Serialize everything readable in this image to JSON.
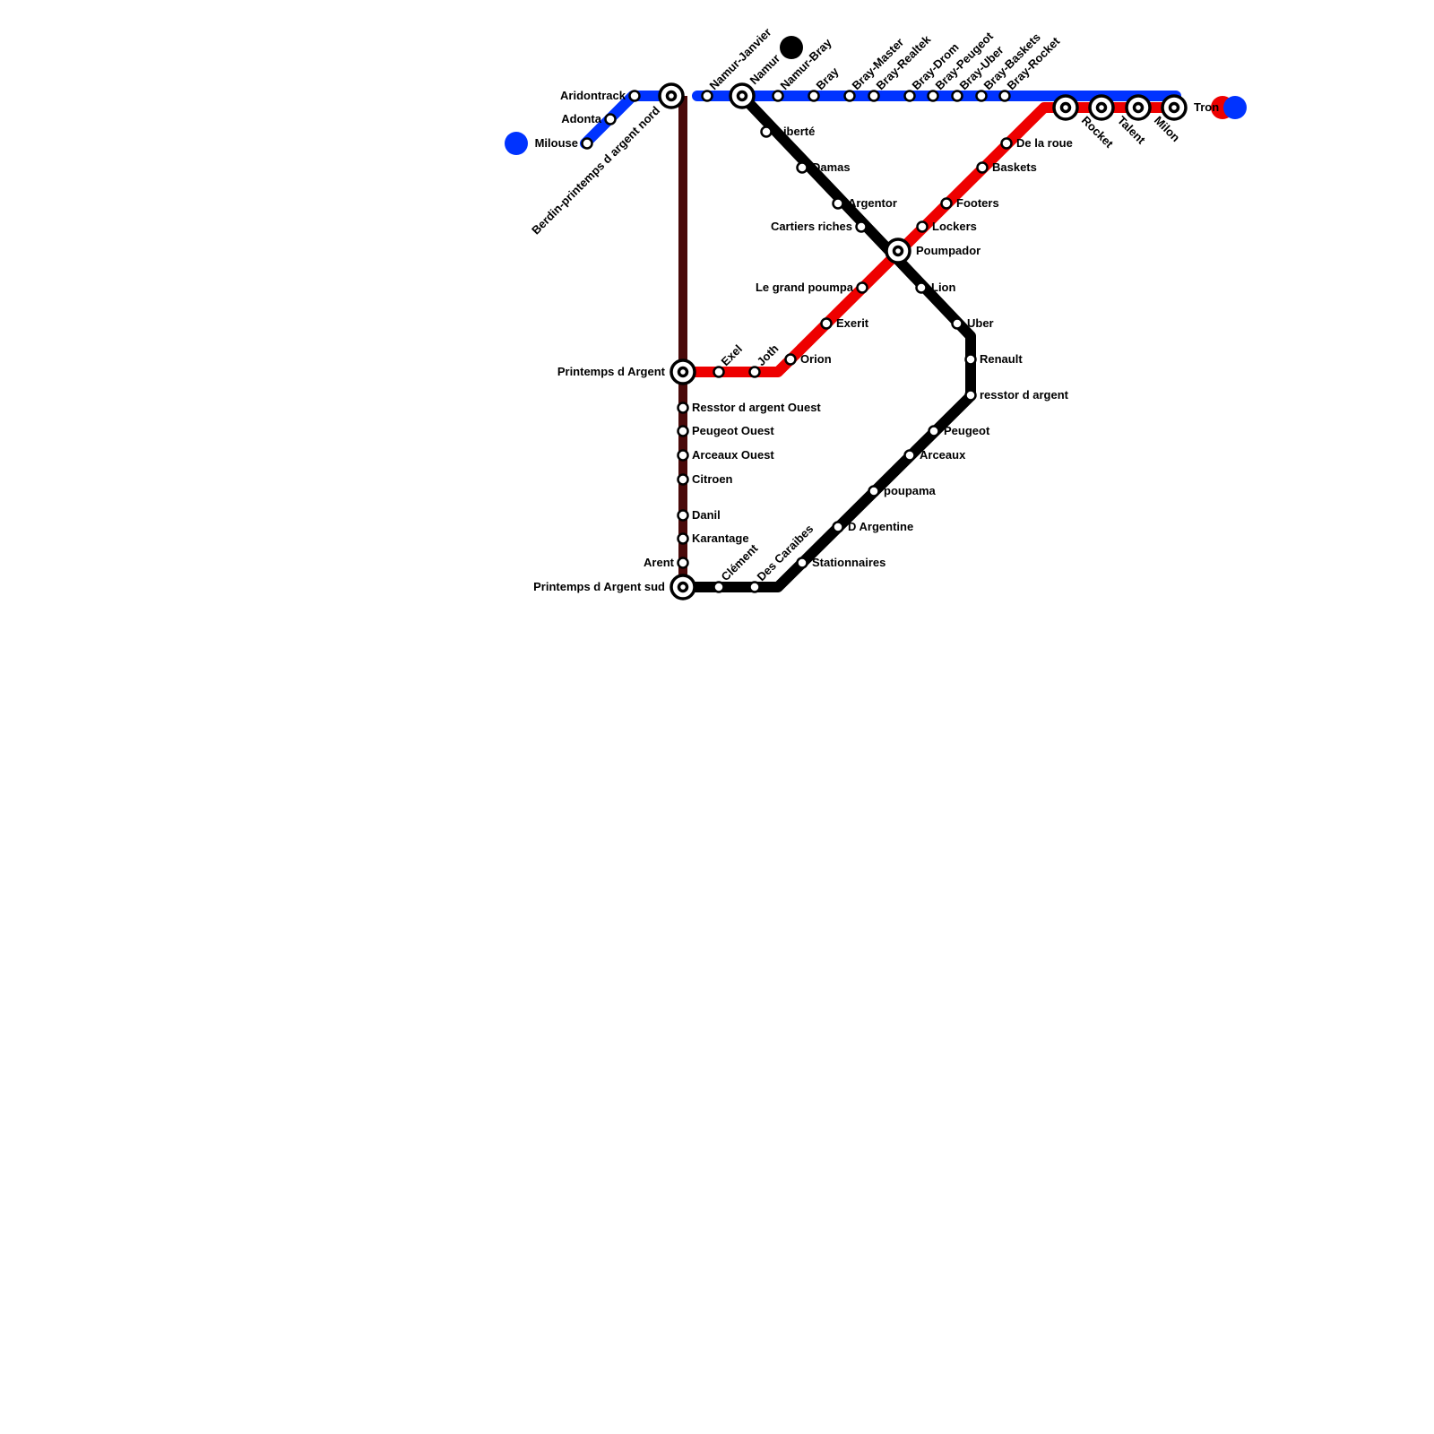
{
  "colors": {
    "blue_line": "#0033ff",
    "red_line": "#ee0000",
    "brown_line": "#4a0a0a",
    "black_line": "#000000",
    "background": "#ffffff"
  },
  "lines": [
    {
      "id": "blue",
      "color_key": "blue_line"
    },
    {
      "id": "red",
      "color_key": "red_line"
    },
    {
      "id": "brown",
      "color_key": "brown_line"
    },
    {
      "id": "black",
      "color_key": "black_line"
    }
  ],
  "stations": {
    "milouse": "Milouse",
    "adonta": "Adonta",
    "aridontrack": "Aridontrack",
    "berdin": "Berdin-printemps d argent nord",
    "namur_janvier": "Namur-Janvier",
    "namur": "Namur",
    "namur_bray": "Namur-Bray",
    "bray": "Bray",
    "bray_master": "Bray-Master",
    "bray_realtek": "Bray-Realtek",
    "bray_drom": "Bray-Drom",
    "bray_peugeot": "Bray-Peugeot",
    "bray_uber": "Bray-Uber",
    "bray_baskets": "Bray-Baskets",
    "bray_rocket": "Bray-Rocket",
    "rocket": "Rocket",
    "talent": "Talent",
    "milon": "Milon",
    "tron": "Tron",
    "liberte": "Liberté",
    "damas": "Damas",
    "argentor": "Argentor",
    "cartiers_riches": "Cartiers riches",
    "poumpador": "Poumpador",
    "lion": "Lion",
    "uber": "Uber",
    "renault": "Renault",
    "resstor_d_argent": "resstor d argent",
    "peugeot": "Peugeot",
    "arceaux": "Arceaux",
    "poupama": "poupama",
    "d_argentine": "D Argentine",
    "stationnaires": "Stationnaires",
    "des_caraibes": "Des Caraibes",
    "clement": "Clément",
    "printemps_sud": "Printemps d Argent sud",
    "arent": "Arent",
    "karantage": "Karantage",
    "danil": "Danil",
    "citroen": "Citroen",
    "arceaux_ouest": "Arceaux Ouest",
    "peugeot_ouest": "Peugeot Ouest",
    "resstor_ouest": "Resstor d argent Ouest",
    "printemps": "Printemps d Argent",
    "exel": "Exel",
    "joth": "Joth",
    "orion": "Orion",
    "exerit": "Exerit",
    "le_grand_poumpa": "Le grand poumpa",
    "lockers": "Lockers",
    "footers": "Footers",
    "baskets": "Baskets",
    "de_la_roue": "De la roue"
  }
}
